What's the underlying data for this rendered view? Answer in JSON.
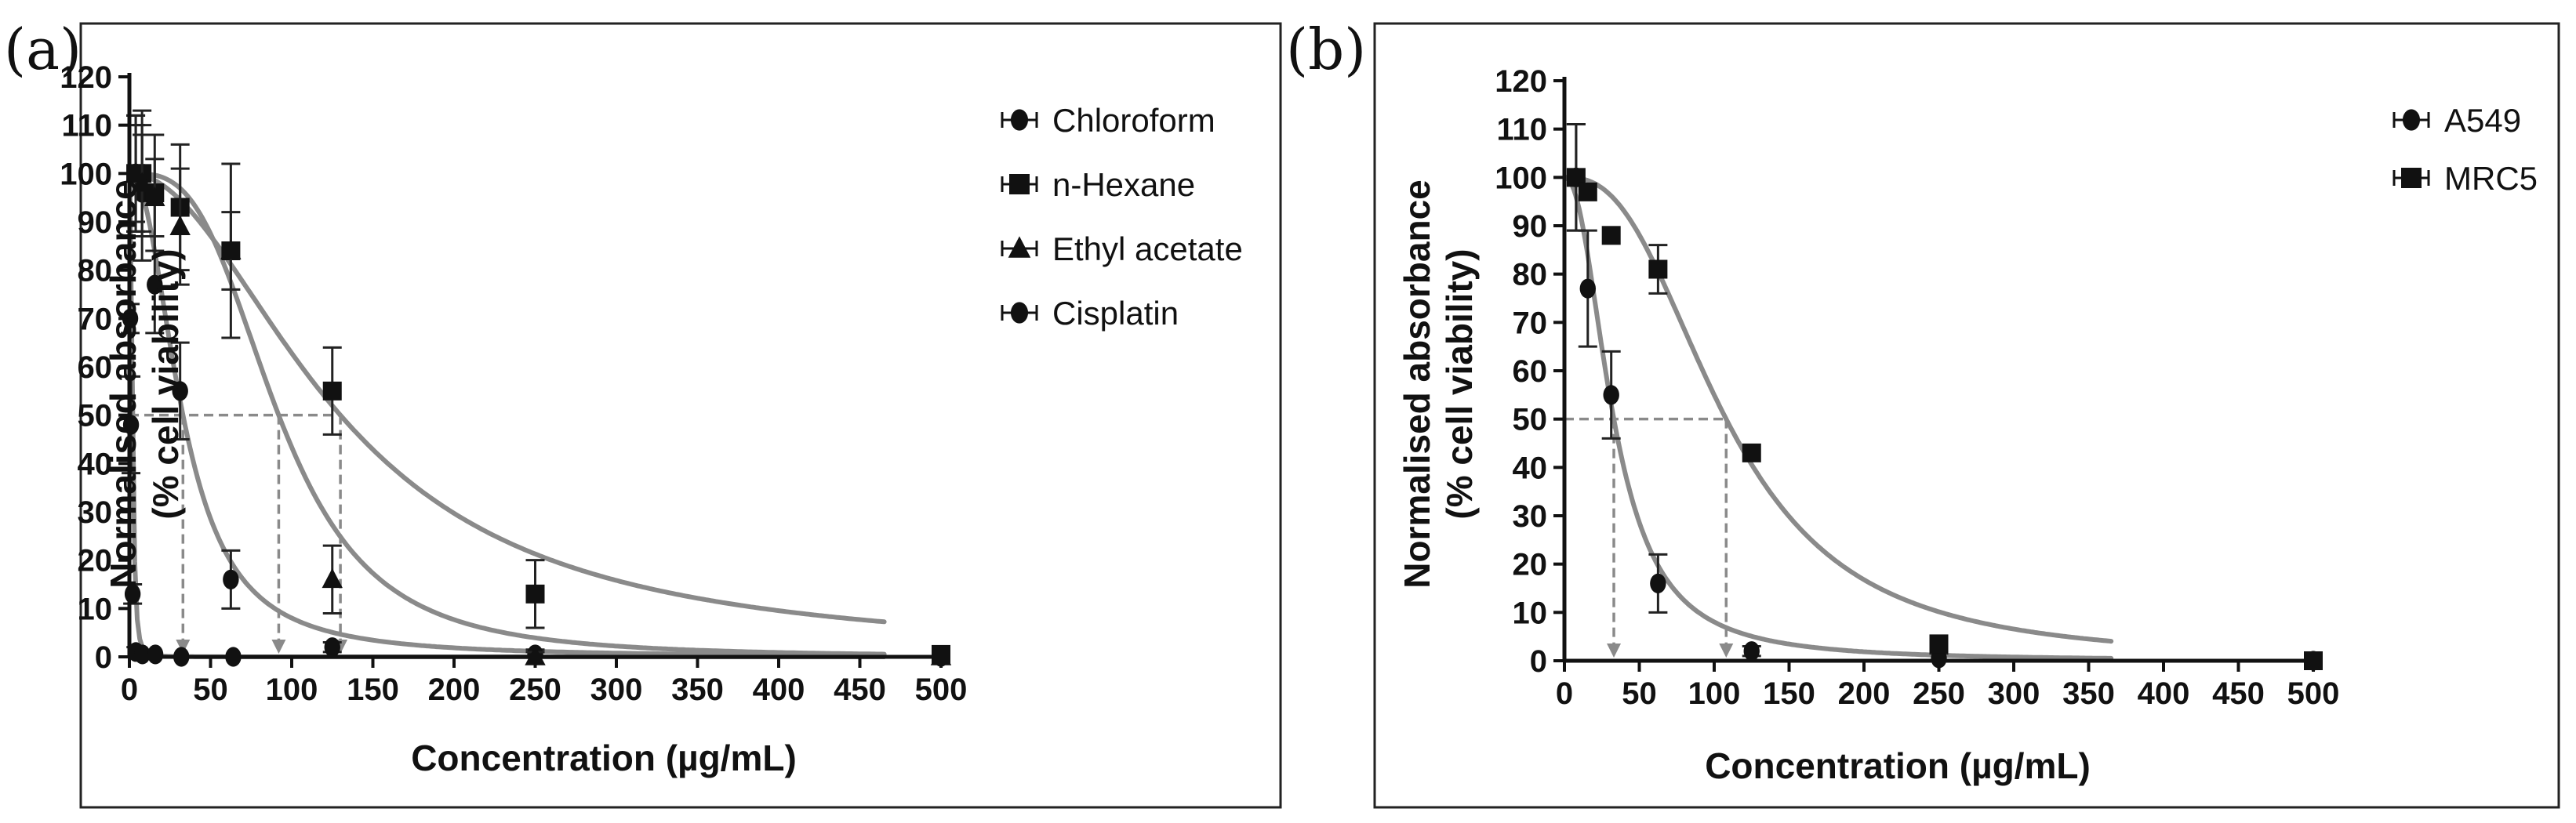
{
  "figure": {
    "panels": [
      {
        "label": "(a)",
        "chart_data": {
          "type": "scatter",
          "title": "",
          "xlabel": "Concentration (µg/mL)",
          "ylabel_line1": "Normalised absorbance",
          "ylabel_line2": "(% cell viability)",
          "xlim": [
            0,
            500
          ],
          "ylim": [
            0,
            120
          ],
          "x_ticks": [
            0,
            50,
            100,
            150,
            200,
            250,
            300,
            350,
            400,
            450,
            500
          ],
          "y_ticks": [
            0,
            10,
            20,
            30,
            40,
            50,
            60,
            70,
            80,
            90,
            100,
            110,
            120
          ],
          "legend_position": "top-right",
          "ic50_line_y": 50,
          "series": [
            {
              "name": "Chloroform",
              "marker": "circle",
              "x": [
                3.9,
                7.8,
                15.6,
                31.25,
                62.5,
                125,
                250,
                500
              ],
              "y": [
                100,
                96,
                77,
                55,
                16,
                2,
                0.5,
                0
              ],
              "err": [
                12,
                14,
                10,
                10,
                6,
                1,
                1,
                0
              ],
              "fit": {
                "ic50": 33,
                "hill": 2.2
              },
              "ic50_x": 33
            },
            {
              "name": "n-Hexane",
              "marker": "square",
              "x": [
                3.9,
                7.8,
                15.6,
                31.25,
                62.5,
                125,
                250,
                500
              ],
              "y": [
                100,
                100,
                96,
                93,
                84,
                55,
                13,
                0.5
              ],
              "err": [
                12,
                13,
                12,
                13,
                18,
                9,
                7,
                1
              ],
              "fit": {
                "ic50": 130,
                "hill": 2.0
              },
              "ic50_x": 130
            },
            {
              "name": "Ethyl acetate",
              "marker": "triangle",
              "x": [
                3.9,
                7.8,
                15.6,
                31.25,
                62.5,
                125,
                250,
                500
              ],
              "y": [
                100,
                98,
                95,
                89,
                84,
                16,
                0,
                0
              ],
              "err": [
                10,
                10,
                8,
                12,
                8,
                7,
                1,
                0
              ],
              "fit": {
                "ic50": 92,
                "hill": 3.2
              },
              "ic50_x": 92
            },
            {
              "name": "Cisplatin",
              "marker": "circle",
              "x": [
                0.5,
                1,
                2,
                4,
                8,
                16,
                32,
                64
              ],
              "y": [
                70,
                48,
                13,
                1,
                0.5,
                0.5,
                0,
                0
              ],
              "err": [
                3,
                10,
                2,
                1,
                0,
                0,
                0,
                0
              ],
              "fit": {
                "ic50": 2.0,
                "hill": 2.8
              },
              "ic50_x": null
            }
          ]
        }
      },
      {
        "label": "(b)",
        "chart_data": {
          "type": "scatter",
          "title": "",
          "xlabel": "Concentration (µg/mL)",
          "ylabel_line1": "Normalised absorbance",
          "ylabel_line2": "(% cell viability)",
          "xlim": [
            0,
            500
          ],
          "ylim": [
            0,
            120
          ],
          "x_ticks": [
            0,
            50,
            100,
            150,
            200,
            250,
            300,
            350,
            400,
            450,
            500
          ],
          "y_ticks": [
            0,
            10,
            20,
            30,
            40,
            50,
            60,
            70,
            80,
            90,
            100,
            110,
            120
          ],
          "legend_position": "top-right",
          "ic50_line_y": 50,
          "series": [
            {
              "name": "A549",
              "marker": "circle",
              "x": [
                7.8,
                15.6,
                31.25,
                62.5,
                125,
                250,
                500
              ],
              "y": [
                100,
                77,
                55,
                16,
                2,
                0.5,
                0
              ],
              "err": [
                11,
                12,
                9,
                6,
                1,
                1,
                0
              ],
              "fit": {
                "ic50": 33,
                "hill": 2.2
              },
              "ic50_x": 33
            },
            {
              "name": "MRC5",
              "marker": "square",
              "x": [
                7.8,
                15.6,
                31.25,
                62.5,
                125,
                250,
                500
              ],
              "y": [
                100,
                97,
                88,
                81,
                43,
                3.5,
                0
              ],
              "err": [
                11,
                0,
                0,
                5,
                0,
                0,
                0
              ],
              "fit": {
                "ic50": 108,
                "hill": 2.6
              },
              "ic50_x": 108
            }
          ]
        }
      }
    ]
  }
}
